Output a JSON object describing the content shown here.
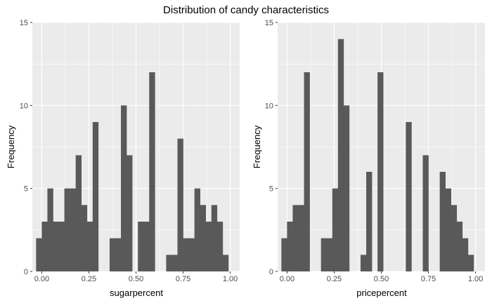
{
  "title": "Distribution of candy characteristics",
  "colors": {
    "panel_bg": "#ebebeb",
    "grid": "#ffffff",
    "bar": "#595959",
    "tick": "#4d4d4d"
  },
  "chart_data": [
    {
      "type": "bar",
      "xlabel": "sugarpercent",
      "ylabel": "Frequency",
      "xlim": [
        -0.05,
        1.05
      ],
      "ylim": [
        0,
        15
      ],
      "bin_width": 0.03,
      "x_ticks": [
        "0.00",
        "0.25",
        "0.50",
        "0.75",
        "1.00"
      ],
      "y_ticks": [
        "0",
        "5",
        "10",
        "15"
      ],
      "grid": true,
      "bins": [
        {
          "x": -0.015,
          "count": 2
        },
        {
          "x": 0.015,
          "count": 3
        },
        {
          "x": 0.045,
          "count": 5
        },
        {
          "x": 0.075,
          "count": 3
        },
        {
          "x": 0.105,
          "count": 3
        },
        {
          "x": 0.135,
          "count": 5
        },
        {
          "x": 0.165,
          "count": 5
        },
        {
          "x": 0.195,
          "count": 7
        },
        {
          "x": 0.225,
          "count": 4
        },
        {
          "x": 0.255,
          "count": 3
        },
        {
          "x": 0.285,
          "count": 9
        },
        {
          "x": 0.315,
          "count": 0
        },
        {
          "x": 0.345,
          "count": 0
        },
        {
          "x": 0.375,
          "count": 2
        },
        {
          "x": 0.405,
          "count": 2
        },
        {
          "x": 0.435,
          "count": 10
        },
        {
          "x": 0.465,
          "count": 7
        },
        {
          "x": 0.495,
          "count": 0
        },
        {
          "x": 0.525,
          "count": 3
        },
        {
          "x": 0.555,
          "count": 3
        },
        {
          "x": 0.585,
          "count": 12
        },
        {
          "x": 0.615,
          "count": 0
        },
        {
          "x": 0.645,
          "count": 0
        },
        {
          "x": 0.675,
          "count": 1
        },
        {
          "x": 0.705,
          "count": 1
        },
        {
          "x": 0.735,
          "count": 8
        },
        {
          "x": 0.765,
          "count": 2
        },
        {
          "x": 0.795,
          "count": 2
        },
        {
          "x": 0.825,
          "count": 5
        },
        {
          "x": 0.855,
          "count": 4
        },
        {
          "x": 0.885,
          "count": 3
        },
        {
          "x": 0.915,
          "count": 4
        },
        {
          "x": 0.945,
          "count": 3
        },
        {
          "x": 0.975,
          "count": 1
        }
      ]
    },
    {
      "type": "bar",
      "xlabel": "pricepercent",
      "ylabel": "Frequency",
      "xlim": [
        -0.05,
        1.05
      ],
      "ylim": [
        0,
        15
      ],
      "bin_width": 0.03,
      "x_ticks": [
        "0.00",
        "0.25",
        "0.50",
        "0.75",
        "1.00"
      ],
      "y_ticks": [
        "0",
        "5",
        "10",
        "15"
      ],
      "grid": true,
      "bins": [
        {
          "x": -0.015,
          "count": 2
        },
        {
          "x": 0.015,
          "count": 3
        },
        {
          "x": 0.045,
          "count": 4
        },
        {
          "x": 0.075,
          "count": 4
        },
        {
          "x": 0.105,
          "count": 12
        },
        {
          "x": 0.135,
          "count": 0
        },
        {
          "x": 0.165,
          "count": 0
        },
        {
          "x": 0.195,
          "count": 2
        },
        {
          "x": 0.225,
          "count": 2
        },
        {
          "x": 0.255,
          "count": 5
        },
        {
          "x": 0.285,
          "count": 14
        },
        {
          "x": 0.315,
          "count": 10
        },
        {
          "x": 0.345,
          "count": 0
        },
        {
          "x": 0.375,
          "count": 0
        },
        {
          "x": 0.405,
          "count": 1
        },
        {
          "x": 0.435,
          "count": 6
        },
        {
          "x": 0.465,
          "count": 0
        },
        {
          "x": 0.495,
          "count": 12
        },
        {
          "x": 0.525,
          "count": 0
        },
        {
          "x": 0.555,
          "count": 0
        },
        {
          "x": 0.585,
          "count": 0
        },
        {
          "x": 0.615,
          "count": 0
        },
        {
          "x": 0.645,
          "count": 9
        },
        {
          "x": 0.675,
          "count": 0
        },
        {
          "x": 0.705,
          "count": 0
        },
        {
          "x": 0.735,
          "count": 7
        },
        {
          "x": 0.765,
          "count": 0
        },
        {
          "x": 0.795,
          "count": 0
        },
        {
          "x": 0.825,
          "count": 6
        },
        {
          "x": 0.855,
          "count": 5
        },
        {
          "x": 0.885,
          "count": 4
        },
        {
          "x": 0.915,
          "count": 3
        },
        {
          "x": 0.945,
          "count": 2
        },
        {
          "x": 0.975,
          "count": 1
        }
      ]
    }
  ]
}
